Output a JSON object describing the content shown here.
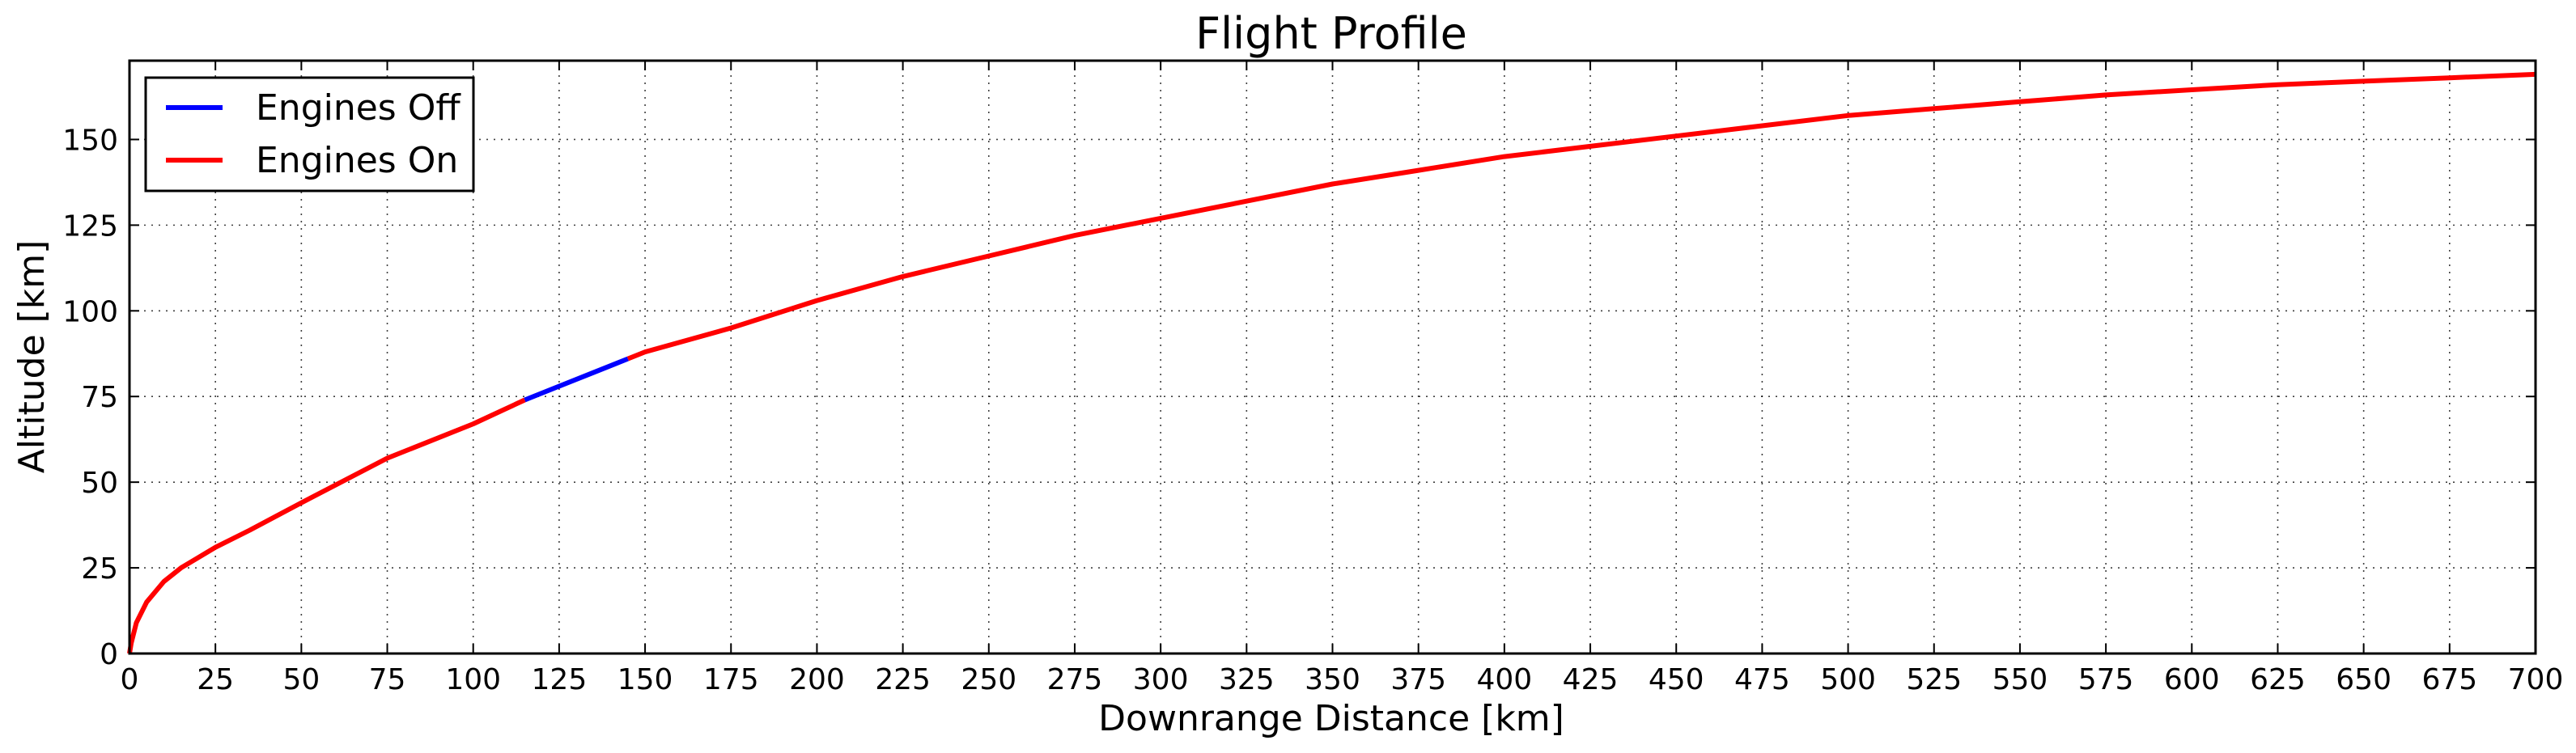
{
  "chart_data": {
    "type": "line",
    "title": "Flight Profile",
    "xlabel": "Downrange Distance [km]",
    "ylabel": "Altitude [km]",
    "xlim": [
      0,
      700
    ],
    "ylim": [
      0,
      173
    ],
    "xticks": [
      0,
      25,
      50,
      75,
      100,
      125,
      150,
      175,
      200,
      225,
      250,
      275,
      300,
      325,
      350,
      375,
      400,
      425,
      450,
      475,
      500,
      525,
      550,
      575,
      600,
      625,
      650,
      675,
      700
    ],
    "yticks": [
      0,
      25,
      50,
      75,
      100,
      125,
      150
    ],
    "grid": true,
    "legend_position": "top-left",
    "series": [
      {
        "name": "Engines Off",
        "color": "#0000ff",
        "points": [
          [
            115,
            74
          ],
          [
            125,
            78
          ],
          [
            135,
            82
          ],
          [
            145,
            86
          ]
        ]
      },
      {
        "name": "Engines On",
        "color": "#ff0000",
        "segments": [
          [
            [
              0,
              0
            ],
            [
              0.5,
              3
            ],
            [
              2,
              9
            ],
            [
              5,
              15
            ],
            [
              10,
              21
            ],
            [
              15,
              25
            ],
            [
              20,
              28
            ],
            [
              25,
              31
            ],
            [
              35,
              36
            ],
            [
              50,
              44
            ],
            [
              75,
              57
            ],
            [
              100,
              67
            ],
            [
              115,
              74
            ]
          ],
          [
            [
              145,
              86
            ],
            [
              150,
              88
            ],
            [
              175,
              95
            ],
            [
              200,
              103
            ],
            [
              225,
              110
            ],
            [
              250,
              116
            ],
            [
              275,
              122
            ],
            [
              300,
              127
            ],
            [
              325,
              132
            ],
            [
              350,
              137
            ],
            [
              375,
              141
            ],
            [
              400,
              145
            ],
            [
              425,
              148
            ],
            [
              450,
              151
            ],
            [
              475,
              154
            ],
            [
              500,
              157
            ],
            [
              525,
              159
            ],
            [
              550,
              161
            ],
            [
              575,
              163
            ],
            [
              600,
              164.5
            ],
            [
              625,
              166
            ],
            [
              650,
              167
            ],
            [
              675,
              168
            ],
            [
              700,
              169
            ]
          ]
        ]
      }
    ]
  }
}
